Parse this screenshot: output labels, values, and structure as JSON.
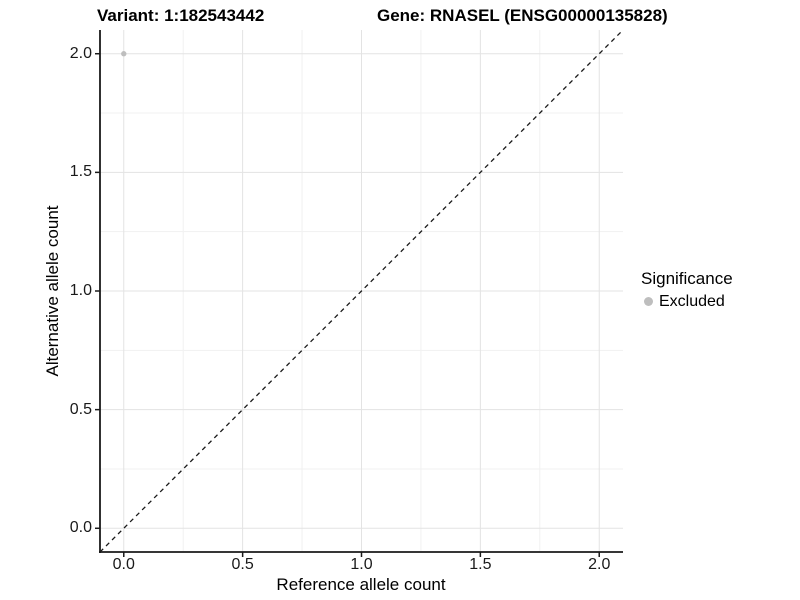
{
  "page": {
    "background": "#ffffff"
  },
  "colors": {
    "grid_major": "#e3e3e3",
    "grid_minor": "#f1f1f1",
    "axis_line": "#1a1a1a",
    "tick_text": "#1a1a1a",
    "point": "#bebebe",
    "dashed_line": "#1a1a1a"
  },
  "chart_data": {
    "type": "scatter",
    "titles": {
      "left": "Variant: 1:182543442",
      "right": "Gene: RNASEL (ENSG00000135828)"
    },
    "xlabel": "Reference allele count",
    "ylabel": "Alternative allele count",
    "xlim": [
      -0.1,
      2.1
    ],
    "ylim": [
      -0.1,
      2.1
    ],
    "x_ticks": {
      "values": [
        0.0,
        0.5,
        1.0,
        1.5,
        2.0
      ],
      "labels": [
        "0.0",
        "0.5",
        "1.0",
        "1.5",
        "2.0"
      ]
    },
    "y_ticks": {
      "values": [
        0.0,
        0.5,
        1.0,
        1.5,
        2.0
      ],
      "labels": [
        "0.0",
        "0.5",
        "1.0",
        "1.5",
        "2.0"
      ]
    },
    "minor_ticks": [
      0.25,
      0.75,
      1.25,
      1.75
    ],
    "grid": true,
    "series": [
      {
        "name": "Excluded",
        "color": "#bebebe",
        "point_radius": 2.7,
        "points": [
          {
            "x": 0.0,
            "y": 2.0
          }
        ]
      }
    ],
    "reference_line": {
      "slope": 1,
      "intercept": 0,
      "style": "dashed",
      "color": "#1a1a1a"
    },
    "legend": {
      "position": "right",
      "title": "Significance",
      "entries": [
        {
          "label": "Excluded",
          "color": "#bebebe"
        }
      ]
    }
  }
}
